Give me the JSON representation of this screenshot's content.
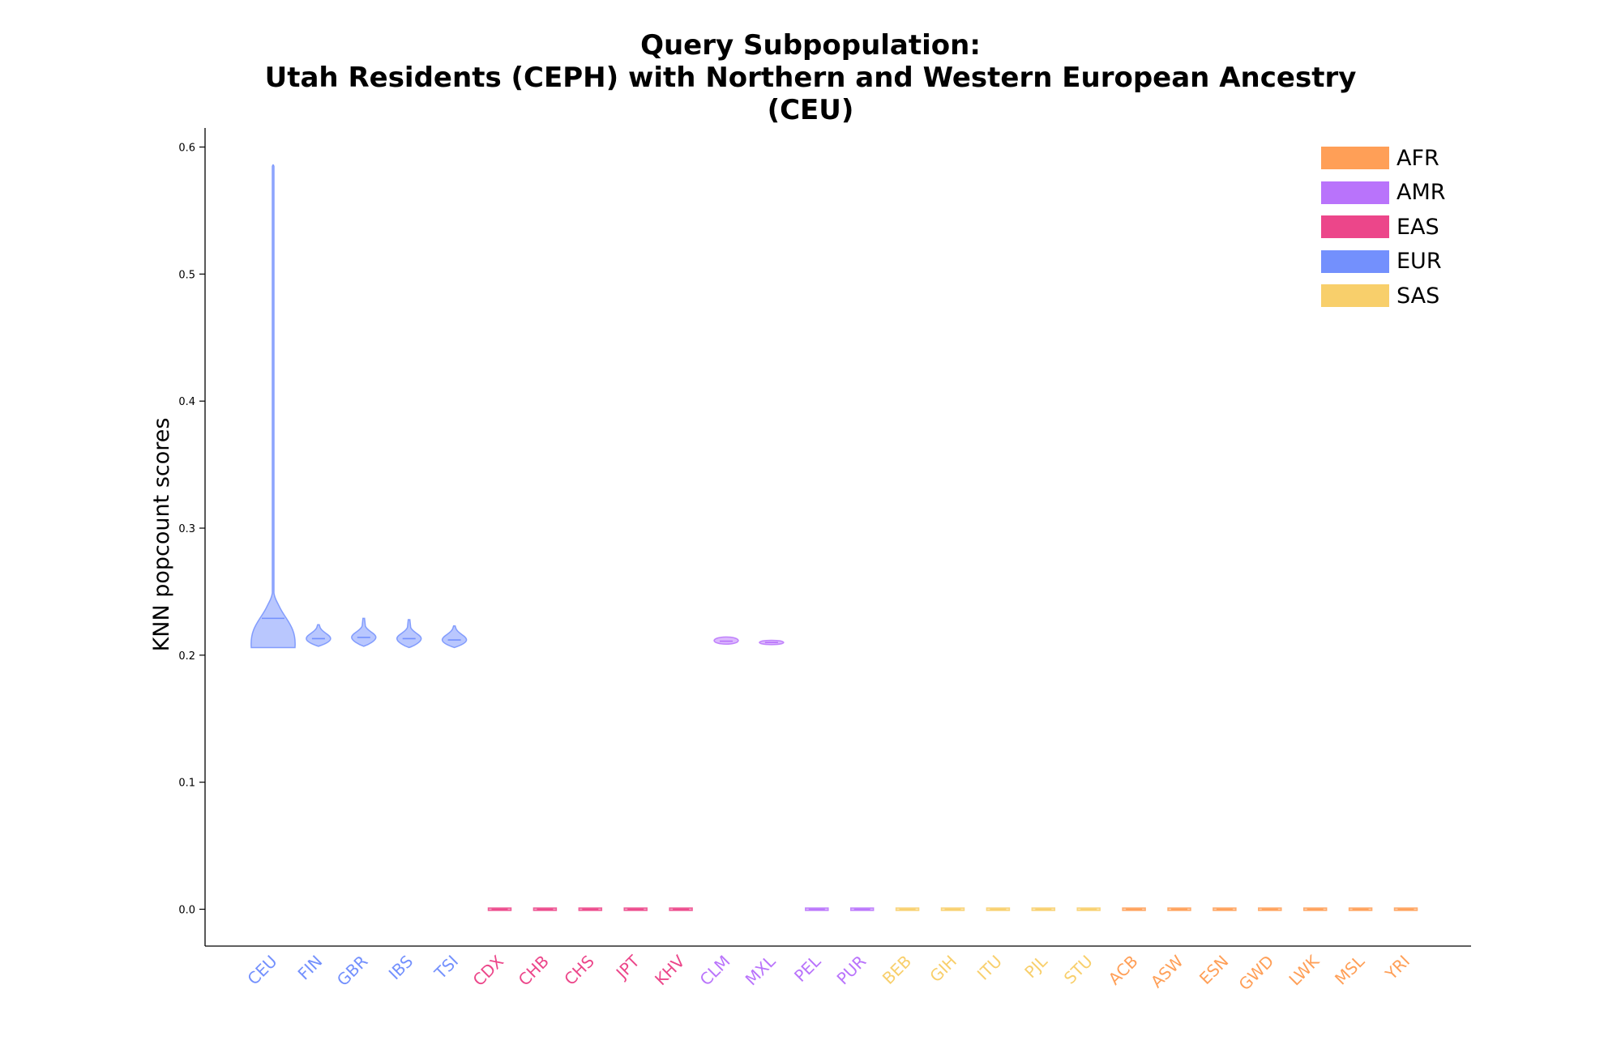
{
  "title": {
    "line1": "Query Subpopulation:",
    "line2": "Utah Residents (CEPH) with Northern and Western European Ancestry",
    "line3": "(CEU)"
  },
  "chart_data": {
    "type": "violin",
    "ylabel": "KNN popcount scores",
    "ylim": [
      -0.029,
      0.615
    ],
    "yticks": [
      "0.0",
      "0.1",
      "0.2",
      "0.3",
      "0.4",
      "0.5",
      "0.6"
    ],
    "grid": false,
    "legend_position": "top-right",
    "colors": {
      "AFR": "#FF9F57",
      "AMR": "#B973FB",
      "EAS": "#EC468A",
      "EUR": "#7390FD",
      "SAS": "#F8CF6B"
    },
    "legend": [
      "AFR",
      "AMR",
      "EAS",
      "EUR",
      "SAS"
    ],
    "categories": [
      {
        "label": "CEU",
        "group": "EUR",
        "min": 0.206,
        "max": 0.586,
        "median": 0.229,
        "shape": "tall"
      },
      {
        "label": "FIN",
        "group": "EUR",
        "min": 0.207,
        "max": 0.224,
        "median": 0.213,
        "shape": "small"
      },
      {
        "label": "GBR",
        "group": "EUR",
        "min": 0.207,
        "max": 0.229,
        "median": 0.214,
        "shape": "small"
      },
      {
        "label": "IBS",
        "group": "EUR",
        "min": 0.206,
        "max": 0.228,
        "median": 0.213,
        "shape": "small"
      },
      {
        "label": "TSI",
        "group": "EUR",
        "min": 0.206,
        "max": 0.223,
        "median": 0.212,
        "shape": "small"
      },
      {
        "label": "CDX",
        "group": "EAS",
        "min": 0.0,
        "max": 0.0,
        "median": 0.0,
        "shape": "flat"
      },
      {
        "label": "CHB",
        "group": "EAS",
        "min": 0.0,
        "max": 0.0,
        "median": 0.0,
        "shape": "flat"
      },
      {
        "label": "CHS",
        "group": "EAS",
        "min": 0.0,
        "max": 0.0,
        "median": 0.0,
        "shape": "flat"
      },
      {
        "label": "JPT",
        "group": "EAS",
        "min": 0.0,
        "max": 0.0,
        "median": 0.0,
        "shape": "flat"
      },
      {
        "label": "KHV",
        "group": "EAS",
        "min": 0.0,
        "max": 0.0,
        "median": 0.0,
        "shape": "flat"
      },
      {
        "label": "CLM",
        "group": "AMR",
        "min": 0.209,
        "max": 0.214,
        "median": 0.211,
        "shape": "blob"
      },
      {
        "label": "MXL",
        "group": "AMR",
        "min": 0.209,
        "max": 0.211,
        "median": 0.21,
        "shape": "blob"
      },
      {
        "label": "PEL",
        "group": "AMR",
        "min": 0.0,
        "max": 0.0,
        "median": 0.0,
        "shape": "flat"
      },
      {
        "label": "PUR",
        "group": "AMR",
        "min": 0.0,
        "max": 0.0,
        "median": 0.0,
        "shape": "flat"
      },
      {
        "label": "BEB",
        "group": "SAS",
        "min": 0.0,
        "max": 0.0,
        "median": 0.0,
        "shape": "flat"
      },
      {
        "label": "GIH",
        "group": "SAS",
        "min": 0.0,
        "max": 0.0,
        "median": 0.0,
        "shape": "flat"
      },
      {
        "label": "ITU",
        "group": "SAS",
        "min": 0.0,
        "max": 0.0,
        "median": 0.0,
        "shape": "flat"
      },
      {
        "label": "PJL",
        "group": "SAS",
        "min": 0.0,
        "max": 0.0,
        "median": 0.0,
        "shape": "flat"
      },
      {
        "label": "STU",
        "group": "SAS",
        "min": 0.0,
        "max": 0.0,
        "median": 0.0,
        "shape": "flat"
      },
      {
        "label": "ACB",
        "group": "AFR",
        "min": 0.0,
        "max": 0.0,
        "median": 0.0,
        "shape": "flat"
      },
      {
        "label": "ASW",
        "group": "AFR",
        "min": 0.0,
        "max": 0.0,
        "median": 0.0,
        "shape": "flat"
      },
      {
        "label": "ESN",
        "group": "AFR",
        "min": 0.0,
        "max": 0.0,
        "median": 0.0,
        "shape": "flat"
      },
      {
        "label": "GWD",
        "group": "AFR",
        "min": 0.0,
        "max": 0.0,
        "median": 0.0,
        "shape": "flat"
      },
      {
        "label": "LWK",
        "group": "AFR",
        "min": 0.0,
        "max": 0.0,
        "median": 0.0,
        "shape": "flat"
      },
      {
        "label": "MSL",
        "group": "AFR",
        "min": 0.0,
        "max": 0.0,
        "median": 0.0,
        "shape": "flat"
      },
      {
        "label": "YRI",
        "group": "AFR",
        "min": 0.0,
        "max": 0.0,
        "median": 0.0,
        "shape": "flat"
      }
    ]
  }
}
